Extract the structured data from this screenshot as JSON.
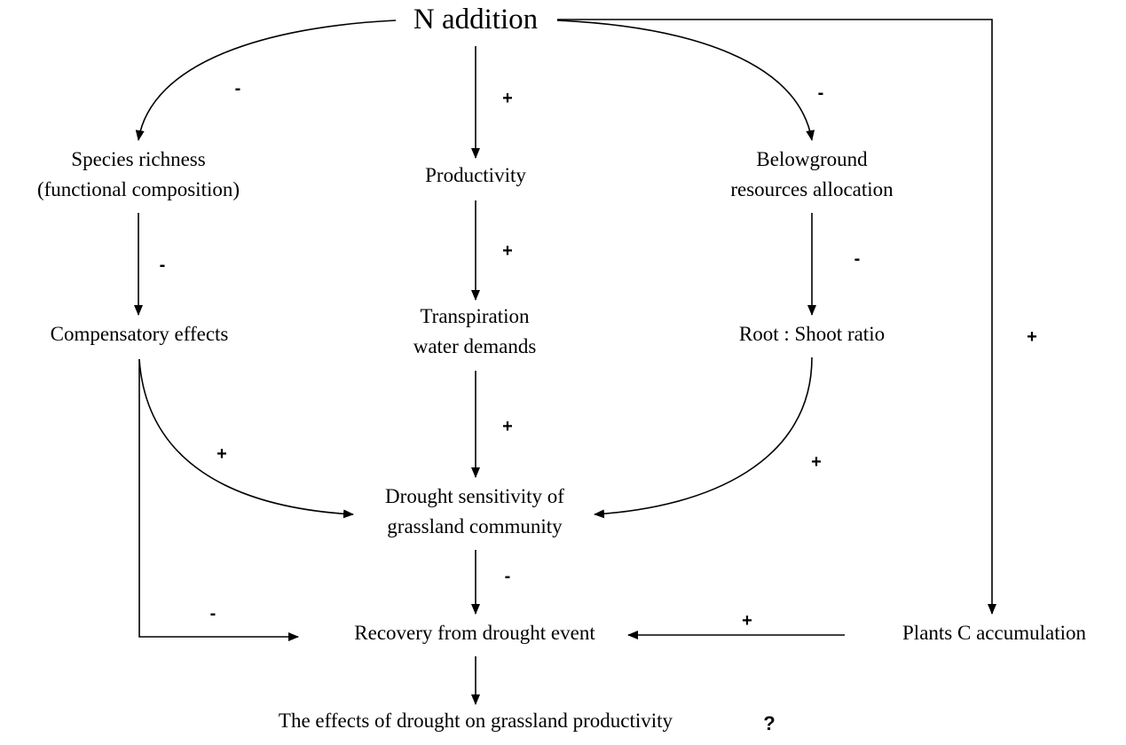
{
  "nodes": {
    "n_addition": "N addition",
    "species_richness": [
      "Species richness",
      "(functional composition)"
    ],
    "productivity": "Productivity",
    "belowground": [
      "Belowground",
      "resources allocation"
    ],
    "compensatory": "Compensatory effects",
    "transpiration": [
      "Transpiration",
      "water demands"
    ],
    "root_shoot": "Root : Shoot ratio",
    "drought_sensitivity": [
      "Drought sensitivity of",
      "grassland community"
    ],
    "recovery": "Recovery from drought event",
    "plants_c": "Plants C accumulation",
    "effects": "The effects of drought on grassland productivity"
  },
  "signs": {
    "n_to_species": "-",
    "n_to_productivity": "+",
    "n_to_belowground": "-",
    "n_to_plants_c": "+",
    "species_to_compensatory": "-",
    "productivity_to_transpiration": "+",
    "belowground_to_root_shoot": "-",
    "compensatory_to_drought": "+",
    "transpiration_to_drought": "+",
    "root_shoot_to_drought": "+",
    "drought_to_recovery": "-",
    "compensatory_to_recovery": "-",
    "plants_c_to_recovery": "+",
    "unknown": "?"
  }
}
